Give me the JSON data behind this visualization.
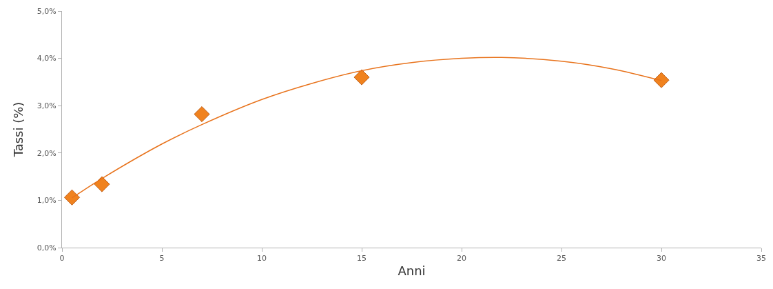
{
  "chart_data": {
    "type": "scatter",
    "xlabel": "Anni",
    "ylabel": "Tassi (%)",
    "series": [
      {
        "color": "#f0821e",
        "marker": "diamond",
        "x": [
          0.5,
          2,
          7,
          15,
          30
        ],
        "values": [
          1.06,
          1.34,
          2.82,
          3.6,
          3.54
        ]
      },
      {
        "type": "line",
        "color": "#e8731c",
        "marker": "none",
        "x": [
          0.5,
          2,
          5,
          7,
          10,
          12.5,
          15,
          17.5,
          20,
          22,
          25,
          27.5,
          30
        ],
        "values": [
          1.05,
          1.46,
          2.19,
          2.6,
          3.13,
          3.47,
          3.74,
          3.91,
          4.0,
          4.02,
          3.94,
          3.78,
          3.53
        ]
      }
    ],
    "xlim": [
      0,
      35
    ],
    "xticks": [
      0,
      5,
      10,
      15,
      20,
      25,
      30,
      35
    ],
    "ylim": [
      0,
      5
    ],
    "yticks": [
      {
        "value": 0,
        "label": "0,0%"
      },
      {
        "value": 1,
        "label": "1,0%"
      },
      {
        "value": 2,
        "label": "2,0%"
      },
      {
        "value": 3,
        "label": "3,0%"
      },
      {
        "value": 4,
        "label": "4,0%"
      },
      {
        "value": 5,
        "label": "5,0%"
      }
    ],
    "line_style": "solid"
  }
}
